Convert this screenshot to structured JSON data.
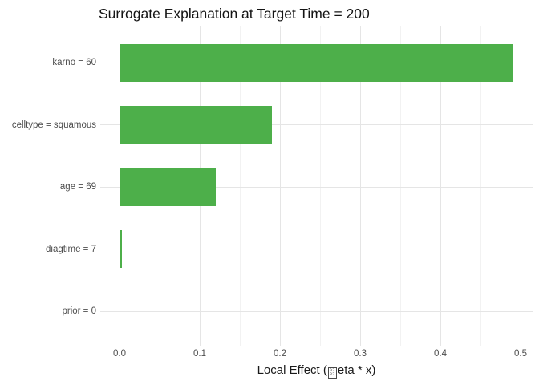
{
  "chart_data": {
    "type": "bar",
    "orientation": "horizontal",
    "title": "Surrogate Explanation at Target Time = 200",
    "categories": [
      "karno = 60",
      "celltype = squamous",
      "age = 69",
      "diagtime = 7",
      "prior = 0"
    ],
    "values": [
      0.49,
      0.19,
      0.12,
      0.003,
      0
    ],
    "xlabel": {
      "prefix": "Local Effect (",
      "missing_glyph_rows": [
        "03",
        "B2"
      ],
      "suffix": "eta * x)"
    },
    "xticks": [
      0.0,
      0.1,
      0.2,
      0.3,
      0.4,
      0.5
    ],
    "xtick_labels": [
      "0.0",
      "0.1",
      "0.2",
      "0.3",
      "0.4",
      "0.5"
    ],
    "x_minor_ticks": [
      0.05,
      0.15,
      0.25,
      0.35,
      0.45
    ],
    "xlim": [
      -0.024,
      0.515
    ],
    "legend": "none",
    "grid": true,
    "bar_color": "#4daf4a",
    "grid_major_color": "#e5e5e5",
    "grid_minor_color": "#f2f2f2",
    "tick_text_color": "#4d4d4d",
    "title_color": "#141414",
    "background_color": "#ffffff"
  }
}
